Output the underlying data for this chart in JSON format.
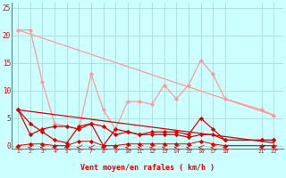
{
  "xlabel": "Vent moyen/en rafales ( km/h )",
  "bg_color": "#ccffff",
  "grid_color": "#b0dede",
  "line_color_light": "#ff9999",
  "line_color_dark": "#dd0000",
  "ylim": [
    -0.5,
    26
  ],
  "yticks": [
    0,
    5,
    10,
    15,
    20,
    25
  ],
  "xticks": [
    1,
    2,
    3,
    4,
    5,
    6,
    7,
    8,
    9,
    10,
    11,
    12,
    13,
    14,
    15,
    16,
    17,
    18,
    21,
    22
  ],
  "line1_x": [
    1,
    2,
    3,
    4,
    5,
    6,
    7,
    8,
    9,
    10,
    11,
    12,
    13,
    14,
    15,
    16,
    17,
    18,
    21,
    22
  ],
  "line1_y": [
    21,
    21,
    11.5,
    4,
    3.5,
    3,
    13,
    6.5,
    3,
    8,
    8,
    7.5,
    11,
    8.5,
    11,
    15.5,
    13,
    8.5,
    6.5,
    5.5
  ],
  "line2_x": [
    1,
    22
  ],
  "line2_y": [
    21,
    5.5
  ],
  "line3_x": [
    1,
    2,
    3,
    4,
    5,
    6,
    7,
    8,
    9,
    10,
    11,
    12,
    13,
    14,
    15,
    16,
    17,
    18,
    21,
    22
  ],
  "line3_y": [
    6.5,
    4,
    2.5,
    1,
    0.5,
    3.5,
    4,
    0,
    3,
    2.5,
    2,
    2.5,
    2.5,
    2.5,
    2,
    5,
    3,
    1,
    1,
    1
  ],
  "line4_x": [
    1,
    22
  ],
  "line4_y": [
    6.5,
    0.5
  ],
  "line5_x": [
    1,
    2,
    3,
    4,
    5,
    6,
    7,
    8,
    9,
    10,
    11,
    12,
    13,
    14,
    15,
    16,
    17,
    18,
    21,
    22
  ],
  "line5_y": [
    6.5,
    2,
    3,
    3.5,
    3.5,
    3,
    4,
    3.5,
    2,
    2.5,
    2,
    2,
    2,
    2,
    1.5,
    2,
    2,
    1,
    1,
    1
  ],
  "line6_x": [
    1,
    2,
    3,
    4,
    5,
    6,
    7,
    8,
    9,
    10,
    11,
    12,
    13,
    14,
    15,
    16,
    17,
    18,
    21,
    22
  ],
  "line6_y": [
    0,
    0.3,
    0.3,
    0,
    0,
    0.8,
    0.8,
    0,
    0,
    0.3,
    0.3,
    0.3,
    0.3,
    0.3,
    0.3,
    0.8,
    0.3,
    0,
    0,
    0
  ]
}
